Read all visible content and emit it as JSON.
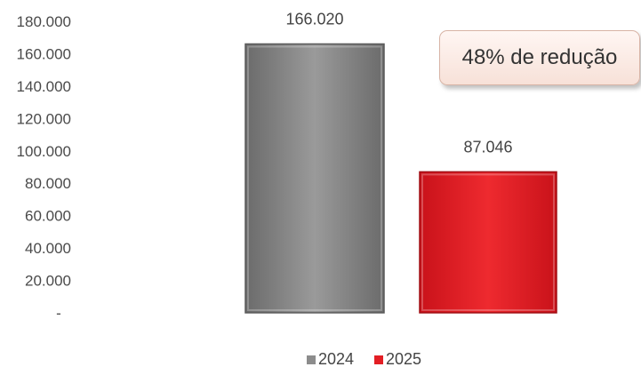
{
  "chart_data": {
    "type": "bar",
    "categories": [
      "2024",
      "2025"
    ],
    "values": [
      166020,
      87046
    ],
    "data_labels": [
      "166.020",
      "87.046"
    ],
    "series_colors": [
      "#8c8c8c",
      "#e31e24"
    ],
    "y_ticks": [
      "180.000",
      "160.000",
      "140.000",
      "120.000",
      "100.000",
      "80.000",
      "60.000",
      "40.000",
      "20.000",
      "-"
    ],
    "ylim": [
      0,
      180000
    ],
    "grid": false,
    "legend": [
      {
        "label": "2024",
        "color": "#8c8c8c"
      },
      {
        "label": "2025",
        "color": "#e31e24"
      }
    ],
    "legend_position": "bottom",
    "annotation": "48% de redução"
  }
}
